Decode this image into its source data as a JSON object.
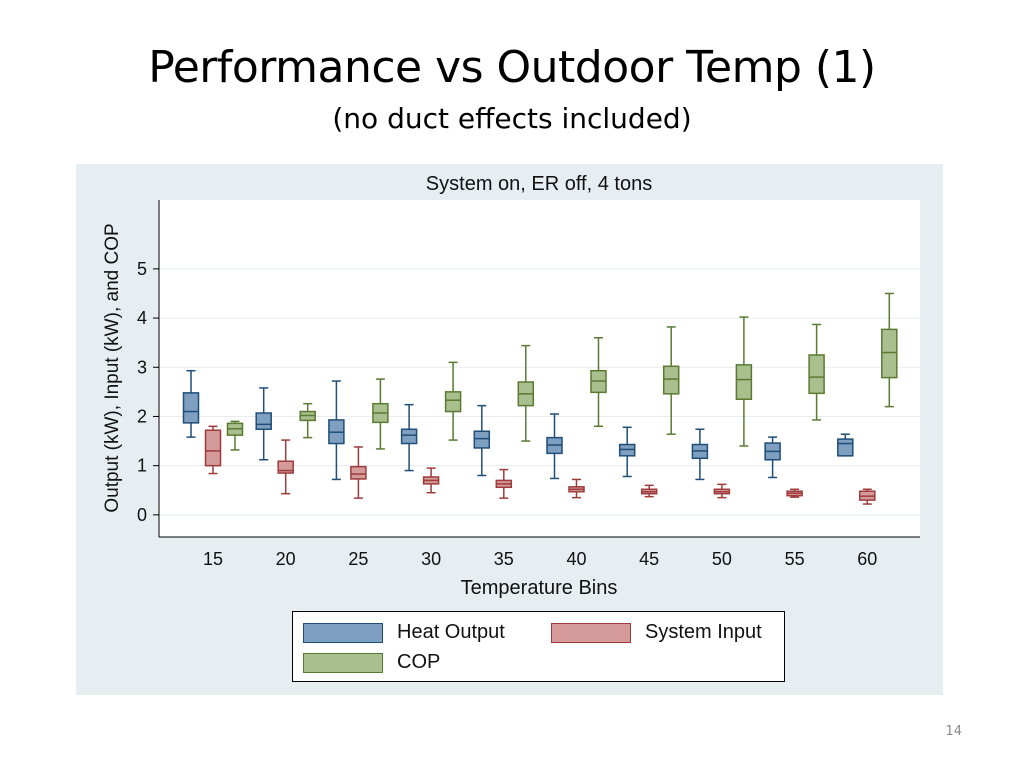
{
  "slide": {
    "title": "Performance vs Outdoor Temp (1)",
    "subtitle": "(no duct effects included)",
    "page_number": "14"
  },
  "chart_data": {
    "type": "box",
    "title": "System on, ER off,  4 tons",
    "xlabel": "Temperature Bins",
    "ylabel": "Output (kW), Input (kW), and COP",
    "categories": [
      "15",
      "20",
      "25",
      "30",
      "35",
      "40",
      "45",
      "50",
      "55",
      "60"
    ],
    "y_ticks": [
      0,
      1,
      2,
      3,
      4,
      5
    ],
    "ylim": [
      -0.45,
      6.4
    ],
    "grid": true,
    "legend_position": "bottom",
    "series": [
      {
        "name": "Heat Output",
        "fill": "#7f9fc0",
        "stroke": "#1f4e79",
        "boxes": [
          {
            "min": 1.58,
            "q1": 1.87,
            "median": 2.1,
            "q3": 2.48,
            "max": 2.93
          },
          {
            "min": 1.12,
            "q1": 1.74,
            "median": 1.84,
            "q3": 2.07,
            "max": 2.58
          },
          {
            "min": 0.72,
            "q1": 1.45,
            "median": 1.68,
            "q3": 1.93,
            "max": 2.72
          },
          {
            "min": 0.9,
            "q1": 1.45,
            "median": 1.62,
            "q3": 1.74,
            "max": 2.24
          },
          {
            "min": 0.8,
            "q1": 1.36,
            "median": 1.55,
            "q3": 1.7,
            "max": 2.22
          },
          {
            "min": 0.74,
            "q1": 1.25,
            "median": 1.42,
            "q3": 1.57,
            "max": 2.05
          },
          {
            "min": 0.78,
            "q1": 1.2,
            "median": 1.33,
            "q3": 1.43,
            "max": 1.78
          },
          {
            "min": 0.72,
            "q1": 1.15,
            "median": 1.3,
            "q3": 1.43,
            "max": 1.74
          },
          {
            "min": 0.76,
            "q1": 1.12,
            "median": 1.29,
            "q3": 1.46,
            "max": 1.58
          },
          {
            "min": 1.2,
            "q1": 1.2,
            "median": 1.45,
            "q3": 1.54,
            "max": 1.64
          }
        ]
      },
      {
        "name": "System Input",
        "fill": "#d59a9a",
        "stroke": "#9e3b3b",
        "boxes": [
          {
            "min": 0.84,
            "q1": 1.0,
            "median": 1.3,
            "q3": 1.72,
            "max": 1.8
          },
          {
            "min": 0.43,
            "q1": 0.85,
            "median": 0.9,
            "q3": 1.09,
            "max": 1.52
          },
          {
            "min": 0.34,
            "q1": 0.73,
            "median": 0.83,
            "q3": 0.98,
            "max": 1.38
          },
          {
            "min": 0.45,
            "q1": 0.63,
            "median": 0.7,
            "q3": 0.77,
            "max": 0.95
          },
          {
            "min": 0.34,
            "q1": 0.56,
            "median": 0.63,
            "q3": 0.7,
            "max": 0.92
          },
          {
            "min": 0.35,
            "q1": 0.47,
            "median": 0.52,
            "q3": 0.57,
            "max": 0.72
          },
          {
            "min": 0.37,
            "q1": 0.43,
            "median": 0.47,
            "q3": 0.52,
            "max": 0.6
          },
          {
            "min": 0.35,
            "q1": 0.43,
            "median": 0.47,
            "q3": 0.52,
            "max": 0.62
          },
          {
            "min": 0.36,
            "q1": 0.39,
            "median": 0.44,
            "q3": 0.48,
            "max": 0.52
          },
          {
            "min": 0.22,
            "q1": 0.3,
            "median": 0.38,
            "q3": 0.48,
            "max": 0.52
          }
        ]
      },
      {
        "name": "COP",
        "fill": "#a9bf8e",
        "stroke": "#5a7a32",
        "boxes": [
          {
            "min": 1.32,
            "q1": 1.62,
            "median": 1.75,
            "q3": 1.86,
            "max": 1.9
          },
          {
            "min": 1.57,
            "q1": 1.92,
            "median": 2.02,
            "q3": 2.1,
            "max": 2.26
          },
          {
            "min": 1.34,
            "q1": 1.88,
            "median": 2.07,
            "q3": 2.26,
            "max": 2.76
          },
          {
            "min": 1.52,
            "q1": 2.1,
            "median": 2.33,
            "q3": 2.5,
            "max": 3.1
          },
          {
            "min": 1.5,
            "q1": 2.22,
            "median": 2.46,
            "q3": 2.7,
            "max": 3.44
          },
          {
            "min": 1.8,
            "q1": 2.49,
            "median": 2.72,
            "q3": 2.93,
            "max": 3.6
          },
          {
            "min": 1.64,
            "q1": 2.46,
            "median": 2.76,
            "q3": 3.02,
            "max": 3.82
          },
          {
            "min": 1.4,
            "q1": 2.35,
            "median": 2.75,
            "q3": 3.05,
            "max": 4.02
          },
          {
            "min": 1.93,
            "q1": 2.47,
            "median": 2.8,
            "q3": 3.25,
            "max": 3.87
          },
          {
            "min": 2.2,
            "q1": 2.79,
            "median": 3.3,
            "q3": 3.77,
            "max": 4.5
          }
        ]
      }
    ]
  }
}
